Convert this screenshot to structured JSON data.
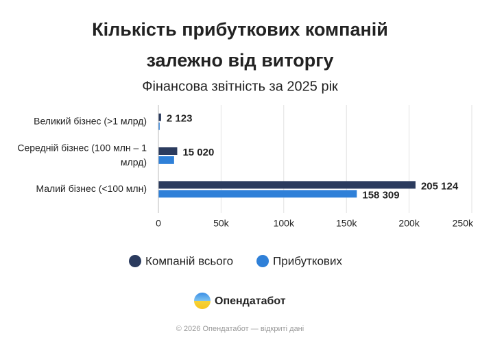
{
  "chart_data": {
    "type": "hbar",
    "title": [
      "Кількість прибуткових компаній",
      "залежно від виторгу"
    ],
    "subtitle": "Фінансова звітність за 2025 рік",
    "categories": [
      "Великий бізнес (>1 млрд)",
      "Середній бізнес (100 млн – 1 млрд)",
      "Малий бізнес (<100 млн)"
    ],
    "series": [
      {
        "name": "Компаній всього",
        "color": "#2b3b5e",
        "values": [
          2123,
          15020,
          205124
        ],
        "value_labels": [
          "2 123",
          "15 020",
          "205 124"
        ]
      },
      {
        "name": "Прибуткових",
        "color": "#2f80d8",
        "values": [
          1000,
          12500,
          158309
        ],
        "value_labels": [
          null,
          null,
          "158 309"
        ]
      }
    ],
    "xlim": [
      0,
      250000
    ],
    "xticks": [
      0,
      {
        "value": 50000,
        "label": "50k"
      },
      {
        "value": 100000,
        "label": "100k"
      },
      {
        "value": 150000,
        "label": "150k"
      },
      {
        "value": 200000,
        "label": "200k"
      },
      {
        "value": 250000,
        "label": "250k"
      }
    ],
    "grid": true
  },
  "brand": "Опендатабот",
  "footer": "© 2026 Опендатабот — відкриті дані"
}
